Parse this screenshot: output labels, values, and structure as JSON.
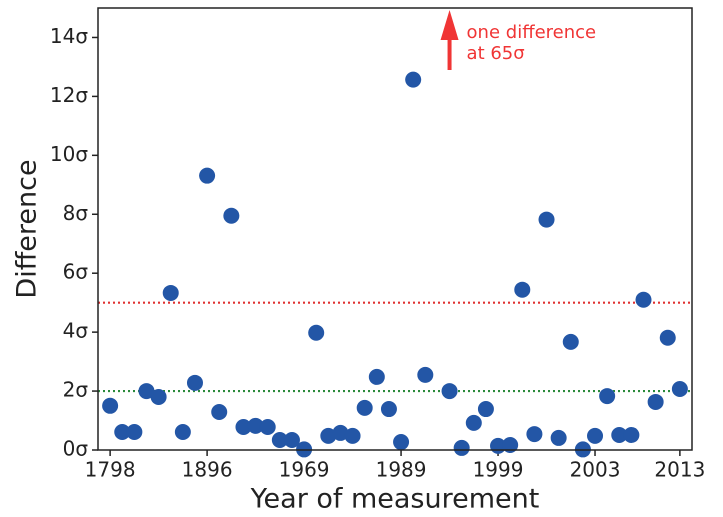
{
  "chart_data": {
    "type": "scatter",
    "x_label": "Year of measurement",
    "y_label": "Difference",
    "color": "#2356a6",
    "x": [
      0,
      1,
      2,
      3,
      4,
      5,
      6,
      7,
      8,
      9,
      10,
      11,
      12,
      13,
      14,
      15,
      16,
      17,
      18,
      19,
      20,
      21,
      22,
      23,
      24,
      25,
      26,
      28,
      29,
      30,
      31,
      32,
      33,
      34,
      35,
      36,
      37,
      38,
      39,
      40,
      41,
      42,
      43,
      44,
      45,
      46,
      47
    ],
    "values": [
      1.5,
      0.61,
      0.61,
      2.0,
      1.8,
      5.33,
      0.61,
      2.28,
      9.31,
      1.29,
      7.95,
      0.78,
      0.82,
      0.78,
      0.34,
      0.34,
      0.02,
      3.98,
      0.48,
      0.58,
      0.48,
      1.43,
      2.48,
      1.39,
      0.27,
      12.57,
      2.55,
      2.0,
      0.07,
      0.92,
      1.39,
      0.14,
      0.17,
      5.44,
      0.54,
      7.82,
      0.41,
      3.67,
      0.02,
      0.48,
      1.83,
      0.51,
      0.51,
      5.1,
      1.63,
      3.81,
      2.07
    ],
    "xlim": [
      -1,
      48
    ],
    "ylim": [
      0,
      15
    ],
    "xticks": [
      {
        "value": 0,
        "label": "1798"
      },
      {
        "value": 8,
        "label": "1896"
      },
      {
        "value": 16,
        "label": "1969"
      },
      {
        "value": 24,
        "label": "1989"
      },
      {
        "value": 32,
        "label": "1999"
      },
      {
        "value": 40,
        "label": "2003"
      },
      {
        "value": 47,
        "label": "2013"
      }
    ],
    "yticks": [
      {
        "value": 0,
        "label": "0σ"
      },
      {
        "value": 2,
        "label": "2σ"
      },
      {
        "value": 4,
        "label": "4σ"
      },
      {
        "value": 6,
        "label": "6σ"
      },
      {
        "value": 8,
        "label": "8σ"
      },
      {
        "value": 10,
        "label": "10σ"
      },
      {
        "value": 12,
        "label": "12σ"
      },
      {
        "value": 14,
        "label": "14σ"
      }
    ],
    "hlines": [
      {
        "value": 5,
        "color": "#e03030"
      },
      {
        "value": 2,
        "color": "#2a8a3a"
      }
    ],
    "annotation": {
      "lines": [
        "one difference",
        "at 65σ"
      ],
      "x": 28,
      "value": 65,
      "color": "#f03535"
    }
  }
}
